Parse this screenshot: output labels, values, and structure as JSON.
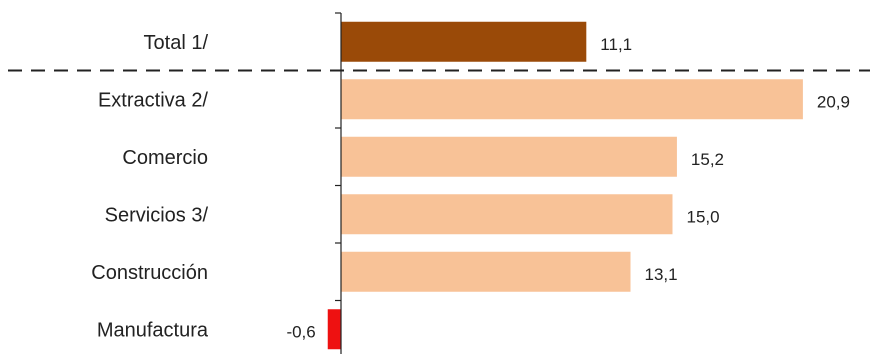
{
  "chart_data": {
    "type": "bar",
    "orientation": "horizontal",
    "categories": [
      "Total 1/",
      "Extractiva 2/",
      "Comercio",
      "Servicios 3/",
      "Construcción",
      "Manufactura"
    ],
    "values": [
      11.1,
      20.9,
      15.2,
      15.0,
      13.1,
      -0.6
    ],
    "value_labels": [
      "11,1",
      "20,9",
      "15,2",
      "15,0",
      "13,1",
      "-0,6"
    ],
    "colors": [
      "#9a4a08",
      "#f8c297",
      "#f8c297",
      "#f8c297",
      "#f8c297",
      "#ee1111"
    ],
    "separator_after_index": 0,
    "title": "",
    "xlabel": "",
    "ylabel": "",
    "xlim": [
      -0.6,
      20.9
    ],
    "legend": false,
    "grid": false
  }
}
